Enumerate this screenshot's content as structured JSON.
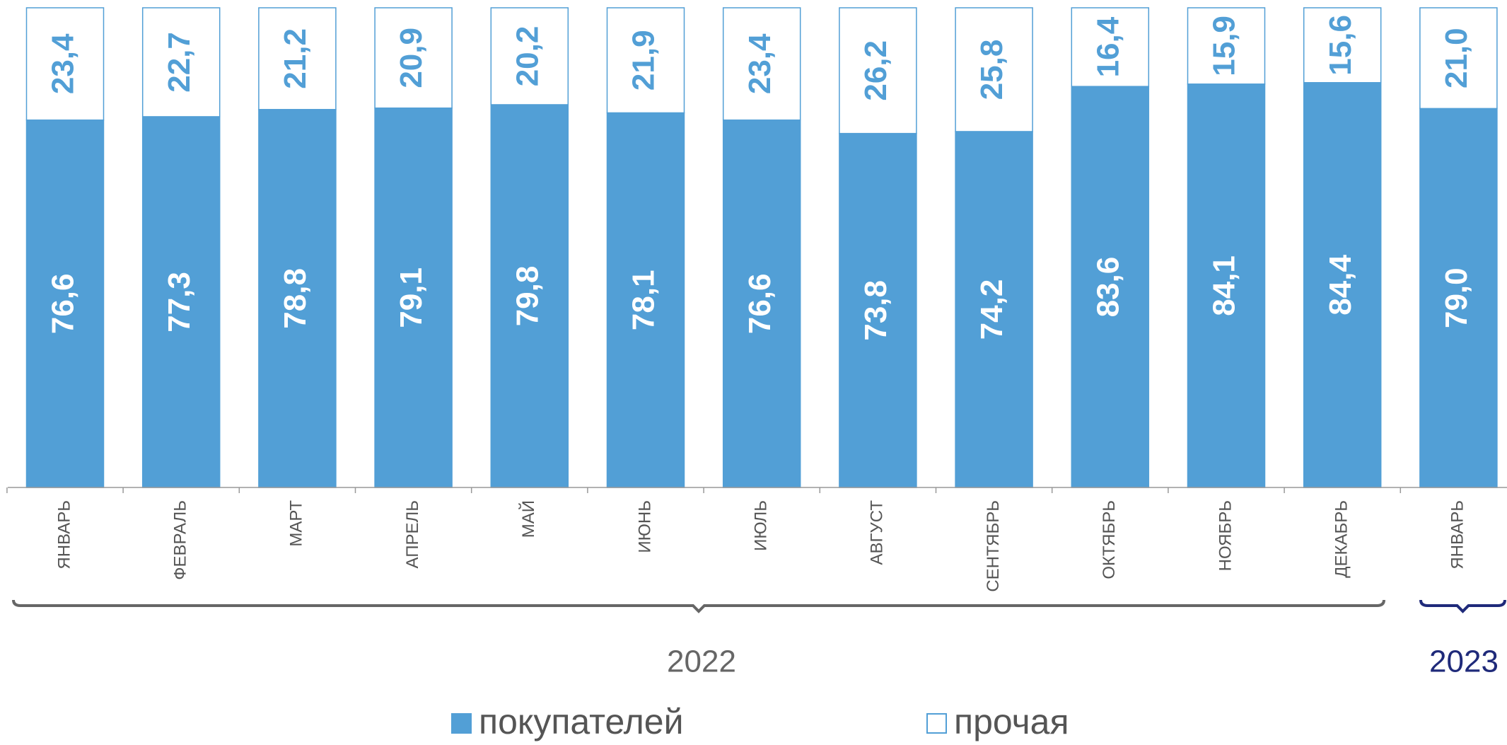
{
  "chart_data": {
    "type": "bar",
    "stacked": true,
    "categories": [
      "ЯНВАРЬ",
      "ФЕВРАЛЬ",
      "МАРТ",
      "АПРЕЛЬ",
      "МАЙ",
      "ИЮНЬ",
      "ИЮЛЬ",
      "АВГУСТ",
      "СЕНТЯБРЬ",
      "ОКТЯБРЬ",
      "НОЯБРЬ",
      "ДЕКАБРЬ",
      "ЯНВАРЬ"
    ],
    "year_groups": [
      "2022",
      "2023"
    ],
    "series": [
      {
        "name": "покупателей",
        "color": "#529fd6",
        "values": [
          76.6,
          77.3,
          78.8,
          79.1,
          79.8,
          78.1,
          76.6,
          73.8,
          74.2,
          83.6,
          84.1,
          84.4,
          79.0
        ],
        "value_labels": [
          "76,6",
          "77,3",
          "78,8",
          "79,1",
          "79,8",
          "78,1",
          "76,6",
          "73,8",
          "74,2",
          "83,6",
          "84,1",
          "84,4",
          "79,0"
        ]
      },
      {
        "name": "прочая",
        "color": "#ffffff",
        "values": [
          23.4,
          22.7,
          21.2,
          20.9,
          20.2,
          21.9,
          23.4,
          26.2,
          25.8,
          16.4,
          15.9,
          15.6,
          21.0
        ],
        "value_labels": [
          "23,4",
          "22,7",
          "21,2",
          "20,9",
          "20,2",
          "21,9",
          "23,4",
          "26,2",
          "25,8",
          "16,4",
          "15,9",
          "15,6",
          "21,0"
        ]
      }
    ],
    "ylim": [
      0,
      100
    ]
  }
}
